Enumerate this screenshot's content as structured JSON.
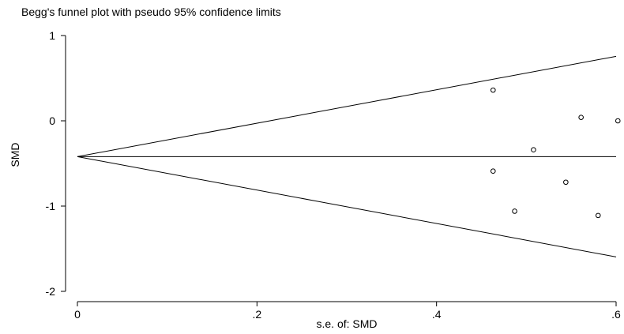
{
  "chart_data": {
    "type": "scatter",
    "title": "Begg's funnel plot with pseudo 95% confidence limits",
    "xlabel": "s.e. of: SMD",
    "ylabel": "SMD",
    "xlim": [
      0,
      0.6
    ],
    "ylim": [
      -2,
      1
    ],
    "x_ticks": [
      {
        "value": 0,
        "label": "0"
      },
      {
        "value": 0.2,
        "label": ".2"
      },
      {
        "value": 0.4,
        "label": ".4"
      },
      {
        "value": 0.6,
        "label": ".6"
      }
    ],
    "y_ticks": [
      {
        "value": 1,
        "label": "1"
      },
      {
        "value": 0,
        "label": "0"
      },
      {
        "value": -1,
        "label": "-1"
      },
      {
        "value": -2,
        "label": "-2"
      }
    ],
    "pooled_estimate": -0.42,
    "pseudo_ci_multiplier": 1.96,
    "grid": false,
    "points": [
      {
        "x": 0.463,
        "y": 0.36
      },
      {
        "x": 0.561,
        "y": 0.04
      },
      {
        "x": 0.602,
        "y": 0.0
      },
      {
        "x": 0.508,
        "y": -0.34
      },
      {
        "x": 0.463,
        "y": -0.59
      },
      {
        "x": 0.544,
        "y": -0.72
      },
      {
        "x": 0.487,
        "y": -1.06
      },
      {
        "x": 0.58,
        "y": -1.11
      }
    ]
  }
}
